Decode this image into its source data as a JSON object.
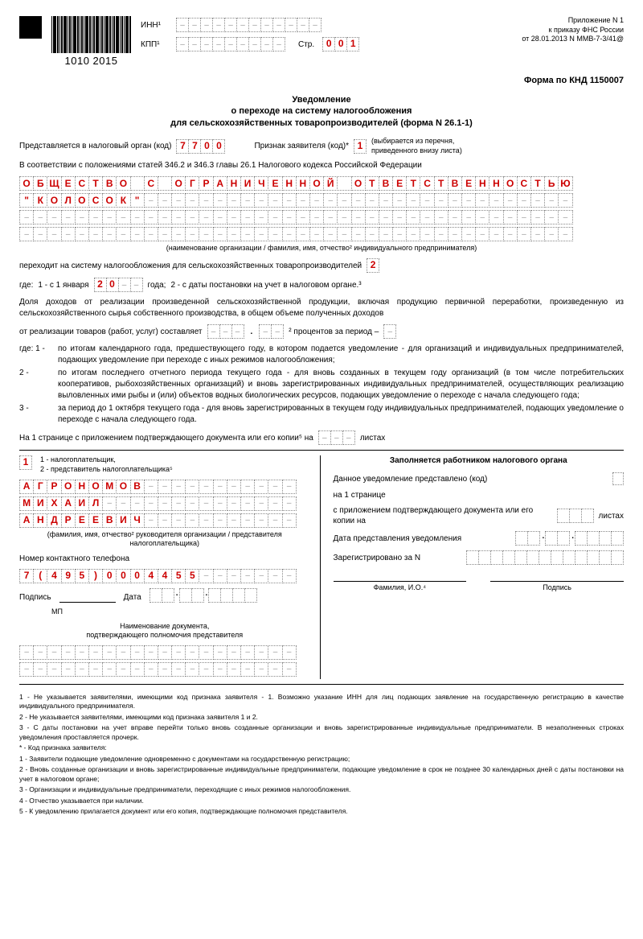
{
  "barcode_number": "1010 2015",
  "header": {
    "inn_label": "ИНН¹",
    "kpp_label": "КПП¹",
    "str_label": "Стр.",
    "page_number": [
      "0",
      "0",
      "1"
    ],
    "attachment": "Приложение N 1",
    "order": "к приказу ФНС России",
    "order_date": "от 28.01.2013 N ММВ-7-3/41@"
  },
  "form_code": "Форма по КНД 1150007",
  "title_lines": [
    "Уведомление",
    "о переходе на систему налогообложения",
    "для сельскохозяйственных товаропроизводителей (форма N 26.1-1)"
  ],
  "submit": {
    "label": "Представляется в налоговый орган (код)",
    "code": [
      "7",
      "7",
      "0",
      "0"
    ],
    "attr_label": "Признак заявителя (код)*",
    "attr_code": "1",
    "attr_hint": "(выбирается из перечня, приведенного внизу листа)"
  },
  "law_text": "В соответствии с положениями статей 346.2 и 346.3 главы 26.1 Налогового кодекса Российской Федерации",
  "org_name_line1": "ОБЩЕСТВО С ОГРАНИЧЕННОЙ ОТВЕТСТВЕННОСТЬЮ",
  "org_name_line2": "\"КОЛОСОК\"",
  "org_caption": "(наименование организации / фамилия, имя, отчество² индивидуального предпринимателя)",
  "transition": {
    "text": "переходит на систему налогообложения для сельскохозяйственных товаропроизводителей",
    "code": "2"
  },
  "where": {
    "prefix": "где:",
    "opt1": "1 - с 1 января",
    "year": [
      "2",
      "0"
    ],
    "year_suffix": "года;",
    "opt2": "2 - с даты постановки на учет в налоговом органе.³"
  },
  "income_para": "Доля доходов от реализации произведенной сельскохозяйственной продукции, включая продукцию первичной переработки, произведенную из сельскохозяйственного сырья собственного производства, в общем объеме полученных доходов",
  "sales_label": "от реализации товаров (работ, услуг) составляет",
  "percent_suffix": "² процентов за период –",
  "period_list": [
    {
      "n": "где:  1 -",
      "t": "по итогам календарного года, предшествующего году, в котором подается уведомление - для организаций и индивидуальных предпринимателей, подающих уведомление при переходе с иных режимов налогообложения;"
    },
    {
      "n": "2 -",
      "t": "по итогам последнего отчетного периода текущего года - для вновь созданных в текущем году организаций (в том числе потребительских кооперативов, рыбохозяйственных организаций) и вновь зарегистрированных индивидуальных предпринимателей, осуществляющих реализацию выловленных ими рыбы и (или) объектов водных биологических ресурсов, подающих уведомление о переходе с начала следующего года;"
    },
    {
      "n": "3 -",
      "t": "за период до 1 октября текущего года - для вновь зарегистрированных в текущем году индивидуальных предпринимателей, подающих уведомление о переходе с начала следующего года."
    }
  ],
  "pages_line": {
    "prefix": "На 1 странице с приложением подтверждающего документа или его копии⁵ на",
    "suffix": "листах"
  },
  "signer": {
    "code": "1",
    "legend": "1 - налогоплательщик,\n2 - представитель налогоплательщика⁵",
    "surname": "АГРОНОМОВ",
    "name": "МИХАИЛ",
    "patronymic": "АНДРЕЕВИЧ",
    "caption": "(фамилия, имя, отчество² руководителя организации / представителя налогоплательщика)",
    "phone_label": "Номер контактного телефона",
    "phone": "7(495)0004455",
    "sign_label": "Подпись",
    "date_label": "Дата",
    "mp": "МП",
    "doc_label": "Наименование документа,\nподтверждающего полномочия представителя"
  },
  "tax_office": {
    "header": "Заполняется работником налогового органа",
    "received": "Данное уведомление представлено (код)",
    "on_pages": "на 1 странице",
    "with_attach": "с приложением подтверждающего документа или его копии на",
    "sheets": "листах",
    "date_label": "Дата представления уведомления",
    "reg_label": "Зарегистрировано за N",
    "fio": "Фамилия, И.О.⁴",
    "sign": "Подпись"
  },
  "footnotes": [
    "1 - Не указывается заявителями, имеющими код признака заявителя - 1. Возможно указание ИНН для лиц подающих заявление на государственную регистрацию в качестве индивидуального предпринимателя.",
    "2 - Не указывается заявителями, имеющими код признака заявителя 1 и 2.",
    "3 - С даты постановки на учет вправе перейти только вновь созданные организации и вновь зарегистрированные индивидуальные предприниматели. В незаполненных строках уведомления проставляется прочерк.",
    "* - Код признака заявителя:",
    "1 - Заявители подающие уведомление одновременно с документами на государственную регистрацию;",
    "2 - Вновь созданные организации и вновь зарегистрированные индивидуальные предприниматели, подающие уведомление в срок не позднее 30 календарных дней с даты постановки на учет в налоговом органе;",
    "3 - Организации и индивидуальные предприниматели, переходящие с иных режимов налогообложения.",
    "4 - Отчество указывается при наличии.",
    "5 - К уведомлению прилагается документ или его копия, подтверждающие полномочия представителя."
  ],
  "style": {
    "filled_color": "#c00",
    "cell_border": "#888",
    "cells_per_row": 40,
    "name_cells": 20
  }
}
